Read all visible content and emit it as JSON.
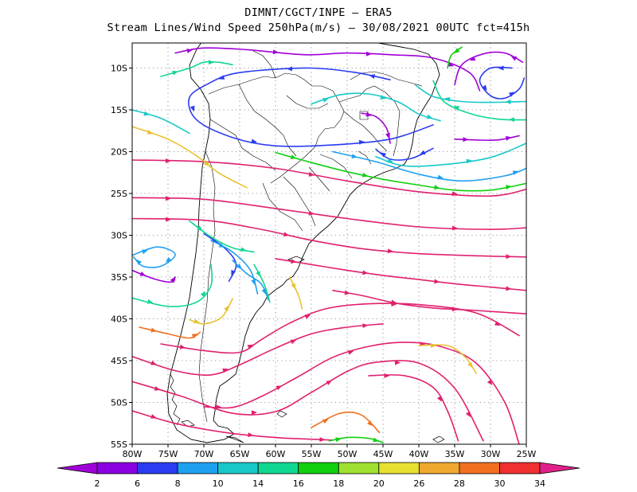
{
  "title_line1": "DIMNT/CGCT/INPE – ERA5",
  "title_line2": "Stream Lines/Wind Speed 250hPa(m/s) – 30/08/2021 00UTC fct=415h",
  "chart_data": {
    "type": "streamline",
    "variable": "250hPa wind speed (m/s)",
    "region": "South America",
    "xlim_lon": [
      -80,
      -25
    ],
    "ylim_lat": [
      -55,
      -7
    ],
    "x_ticks": [
      {
        "v": -80,
        "label": "80W"
      },
      {
        "v": -75,
        "label": "75W"
      },
      {
        "v": -70,
        "label": "70W"
      },
      {
        "v": -65,
        "label": "65W"
      },
      {
        "v": -60,
        "label": "60W"
      },
      {
        "v": -55,
        "label": "55W"
      },
      {
        "v": -50,
        "label": "50W"
      },
      {
        "v": -45,
        "label": "45W"
      },
      {
        "v": -40,
        "label": "40W"
      },
      {
        "v": -35,
        "label": "35W"
      },
      {
        "v": -30,
        "label": "30W"
      },
      {
        "v": -25,
        "label": "25W"
      }
    ],
    "y_ticks": [
      {
        "v": -10,
        "label": "10S"
      },
      {
        "v": -15,
        "label": "15S"
      },
      {
        "v": -20,
        "label": "20S"
      },
      {
        "v": -25,
        "label": "25S"
      },
      {
        "v": -30,
        "label": "30S"
      },
      {
        "v": -35,
        "label": "35S"
      },
      {
        "v": -40,
        "label": "40S"
      },
      {
        "v": -45,
        "label": "45S"
      },
      {
        "v": -50,
        "label": "50S"
      },
      {
        "v": -55,
        "label": "55S"
      }
    ],
    "grid": "dotted",
    "colorbar": {
      "labels": [
        "2",
        "6",
        "8",
        "10",
        "14",
        "16",
        "18",
        "20",
        "26",
        "28",
        "30",
        "34"
      ],
      "colors": [
        "#a000d8",
        "#8a00e0",
        "#2a3cf0",
        "#1ea0f0",
        "#18c8c8",
        "#10d890",
        "#10d010",
        "#a0e030",
        "#e8e030",
        "#f0a830",
        "#f07020",
        "#f03030",
        "#e0208a"
      ]
    },
    "streamlines": [
      {
        "color": "#e0206e",
        "lon": [
          -80,
          -70,
          -60,
          -50,
          -40,
          -30,
          -25
        ],
        "lat": [
          -21,
          -21.2,
          -22,
          -23.5,
          -24.8,
          -25.3,
          -24.5
        ]
      },
      {
        "color": "#e0206e",
        "lon": [
          -80,
          -70,
          -60,
          -50,
          -40,
          -30,
          -25
        ],
        "lat": [
          -25.5,
          -25.7,
          -26.8,
          -28,
          -29,
          -29.3,
          -29.1
        ]
      },
      {
        "color": "#e0206e",
        "lon": [
          -80,
          -70,
          -62,
          -55,
          -48,
          -40,
          -30,
          -25
        ],
        "lat": [
          -28,
          -28.2,
          -29.3,
          -30.6,
          -31.6,
          -32.2,
          -32.5,
          -32.6
        ]
      },
      {
        "color": "#e0206e",
        "lon": [
          -60,
          -55,
          -50,
          -45,
          -40,
          -35,
          -30,
          -25
        ],
        "lat": [
          -32.8,
          -33.5,
          -34.2,
          -34.8,
          -35.3,
          -35.8,
          -36.2,
          -36.6
        ]
      },
      {
        "color": "#e0206e",
        "lon": [
          -52,
          -48,
          -45,
          -42,
          -38,
          -32,
          -25
        ],
        "lat": [
          -36.6,
          -37.2,
          -37.8,
          -38.3,
          -38.7,
          -39,
          -39.4
        ]
      },
      {
        "color": "#e0206e",
        "lon": [
          -76,
          -70,
          -65,
          -62,
          -58,
          -53,
          -47,
          -40,
          -32,
          -26
        ],
        "lat": [
          -43,
          -43.8,
          -44,
          -42.5,
          -40.5,
          -38.8,
          -38.2,
          -38.3,
          -39.3,
          -42
        ]
      },
      {
        "color": "#e0206e",
        "lon": [
          -80,
          -74,
          -69,
          -65,
          -60,
          -55,
          -50,
          -45
        ],
        "lat": [
          -44.5,
          -46.2,
          -46.7,
          -45.5,
          -43.5,
          -41.8,
          -41,
          -40.6
        ]
      },
      {
        "color": "#e0206e",
        "lon": [
          -70,
          -66,
          -62,
          -57,
          -52,
          -47,
          -42,
          -37,
          -32,
          -28,
          -26
        ],
        "lat": [
          -50.5,
          -50.6,
          -49.3,
          -47,
          -44.6,
          -43.3,
          -42.8,
          -43.3,
          -45.3,
          -50,
          -55
        ]
      },
      {
        "color": "#e0206e",
        "lon": [
          -80,
          -73,
          -66,
          -60,
          -55,
          -50,
          -46,
          -40,
          -35,
          -31
        ],
        "lat": [
          -47.5,
          -49.3,
          -51.3,
          -51.1,
          -48.8,
          -46.3,
          -45.2,
          -45.3,
          -48.3,
          -54.6
        ]
      },
      {
        "color": "#e0206e",
        "lon": [
          -80,
          -74,
          -67,
          -60,
          -55,
          -52
        ],
        "lat": [
          -51,
          -52.5,
          -53.6,
          -54.2,
          -54.4,
          -54.5
        ]
      },
      {
        "color": "#e0206e",
        "lon": [
          -47,
          -42,
          -38,
          -36,
          -34.5
        ],
        "lat": [
          -46.8,
          -46.8,
          -48.2,
          -51,
          -54.6
        ]
      },
      {
        "color": "#f07020",
        "lon": [
          -55,
          -51,
          -48,
          -45.5
        ],
        "lat": [
          -53,
          -51.3,
          -51.5,
          -53.6
        ]
      },
      {
        "color": "#e8c030",
        "lon": [
          -40,
          -36,
          -33.5,
          -32
        ],
        "lat": [
          -43.2,
          -43.2,
          -44.6,
          -46.5
        ]
      },
      {
        "color": "#10d010",
        "lon": [
          -52.5,
          -50,
          -47,
          -45
        ],
        "lat": [
          -54.6,
          -54.2,
          -54.3,
          -54.8
        ]
      },
      {
        "color": "#e8c030",
        "lon": [
          -80,
          -75,
          -71,
          -68,
          -64
        ],
        "lat": [
          -17,
          -18.5,
          -20.5,
          -22.5,
          -24.3
        ]
      },
      {
        "color": "#18c8c8",
        "lon": [
          -80,
          -76,
          -72
        ],
        "lat": [
          -15,
          -16,
          -17.8
        ]
      },
      {
        "color": "#a000d8",
        "lon": [
          -74,
          -70,
          -64,
          -56,
          -50,
          -44,
          -38,
          -33,
          -31.5
        ],
        "lat": [
          -8.2,
          -7.6,
          -7.8,
          -8.4,
          -8.2,
          -8.4,
          -8.8,
          -10.5,
          -12.7
        ]
      },
      {
        "color": "#2a3cf0",
        "lon": [
          -44,
          -49,
          -55,
          -61,
          -66,
          -69,
          -72,
          -71,
          -66,
          -60,
          -52,
          -44,
          -38
        ],
        "lat": [
          -11.4,
          -10.5,
          -10,
          -10.2,
          -10.7,
          -11.7,
          -13.5,
          -16.2,
          -18.3,
          -19.3,
          -19.2,
          -18.5,
          -16.8
        ]
      },
      {
        "color": "#10d890",
        "lon": [
          -76,
          -72,
          -70,
          -68,
          -66
        ],
        "lat": [
          -11,
          -10,
          -9.3,
          -9.3,
          -9.6
        ]
      },
      {
        "color": "#18c8c8",
        "lon": [
          -55,
          -51,
          -47,
          -43,
          -40,
          -37
        ],
        "lat": [
          -14.3,
          -13.2,
          -13.1,
          -14,
          -15.5,
          -16.3
        ]
      },
      {
        "color": "#2a3cf0",
        "lon": [
          -38,
          -41,
          -44,
          -46
        ],
        "lat": [
          -19.6,
          -20.8,
          -20.9,
          -19.7
        ]
      },
      {
        "color": "#a000d8",
        "lon": [
          -48,
          -46,
          -44.5,
          -44
        ],
        "lat": [
          -15.4,
          -15.8,
          -17.2,
          -19
        ]
      },
      {
        "color": "#18c8c8",
        "lon": [
          -46,
          -42,
          -36,
          -30,
          -25
        ],
        "lat": [
          -20.6,
          -21.7,
          -21.5,
          -20.7,
          -19
        ]
      },
      {
        "color": "#1ea0f0",
        "lon": [
          -52,
          -46,
          -40,
          -34,
          -28,
          -25
        ],
        "lat": [
          -20,
          -21.2,
          -22.7,
          -23.5,
          -22.9,
          -22
        ]
      },
      {
        "color": "#10d010",
        "lon": [
          -60,
          -55,
          -50,
          -45,
          -40,
          -35,
          -30,
          -25
        ],
        "lat": [
          -20.1,
          -21.3,
          -22.4,
          -23.3,
          -24,
          -24.6,
          -24.6,
          -23.8
        ]
      },
      {
        "color": "#a000d8",
        "lon": [
          -25.5,
          -28,
          -31,
          -34,
          -35
        ],
        "lat": [
          -9.3,
          -8.2,
          -8.3,
          -9.6,
          -12
        ]
      },
      {
        "color": "#2a3cf0",
        "lon": [
          -27,
          -30,
          -31.5,
          -30,
          -28,
          -26,
          -25.3
        ],
        "lat": [
          -10,
          -10,
          -11.5,
          -13.3,
          -13.6,
          -12.5,
          -11.2
        ]
      },
      {
        "color": "#18c8c8",
        "lon": [
          -25,
          -30,
          -34,
          -38,
          -40.5
        ],
        "lat": [
          -14,
          -14.1,
          -14,
          -13.4,
          -12
        ]
      },
      {
        "color": "#10d890",
        "lon": [
          -25,
          -29,
          -33,
          -36.5,
          -38
        ],
        "lat": [
          -16.2,
          -16.1,
          -15.4,
          -14,
          -11.5
        ]
      },
      {
        "color": "#a000d8",
        "lon": [
          -35,
          -32,
          -29,
          -26
        ],
        "lat": [
          -18.5,
          -18.6,
          -18.6,
          -18.1
        ]
      },
      {
        "color": "#10d010",
        "lon": [
          -34,
          -35.5,
          -36
        ],
        "lat": [
          -7.5,
          -8.5,
          -10
        ]
      },
      {
        "color": "#1ea0f0",
        "lon": [
          -80,
          -76.5,
          -74,
          -76,
          -78.5,
          -79.8
        ],
        "lat": [
          -32.4,
          -31.4,
          -32.3,
          -33.7,
          -33.7,
          -32.6
        ]
      },
      {
        "color": "#a000d8",
        "lon": [
          -80,
          -77,
          -74.5,
          -74
        ],
        "lat": [
          -34.2,
          -35.2,
          -35.6,
          -35
        ]
      },
      {
        "color": "#10d890",
        "lon": [
          -80,
          -75,
          -71,
          -69,
          -69
        ],
        "lat": [
          -37.5,
          -38.5,
          -38,
          -36,
          -33.5
        ]
      },
      {
        "color": "#2a3cf0",
        "lon": [
          -70,
          -67,
          -65.5,
          -66.5
        ],
        "lat": [
          -29.8,
          -31.6,
          -33.5,
          -35.5
        ]
      },
      {
        "color": "#e8c030",
        "lon": [
          -72,
          -70,
          -67.5,
          -66
        ],
        "lat": [
          -40.1,
          -40.6,
          -39.8,
          -37.6
        ]
      },
      {
        "color": "#f07020",
        "lon": [
          -79,
          -75,
          -72,
          -70.5
        ],
        "lat": [
          -41,
          -41.8,
          -42.3,
          -41.6
        ]
      },
      {
        "color": "#1ea0f0",
        "lon": [
          -69,
          -66,
          -63.5,
          -62.5
        ],
        "lat": [
          -30.6,
          -32,
          -34.2,
          -37
        ]
      },
      {
        "color": "#10d890",
        "lon": [
          -63,
          -61.6,
          -60.8
        ],
        "lat": [
          -33.5,
          -35.8,
          -38
        ]
      },
      {
        "color": "#e8c030",
        "lon": [
          -58,
          -56.8,
          -56.3
        ],
        "lat": [
          -35,
          -37.2,
          -38.8
        ]
      },
      {
        "color": "#10d890",
        "lon": [
          -72,
          -69,
          -66,
          -63
        ],
        "lat": [
          -28.3,
          -30.2,
          -31.5,
          -32
        ]
      },
      {
        "color": "#1ea0f0",
        "lon": [
          -66,
          -64,
          -62,
          -61
        ],
        "lat": [
          -33,
          -34.6,
          -35.8,
          -37.7
        ]
      }
    ]
  }
}
